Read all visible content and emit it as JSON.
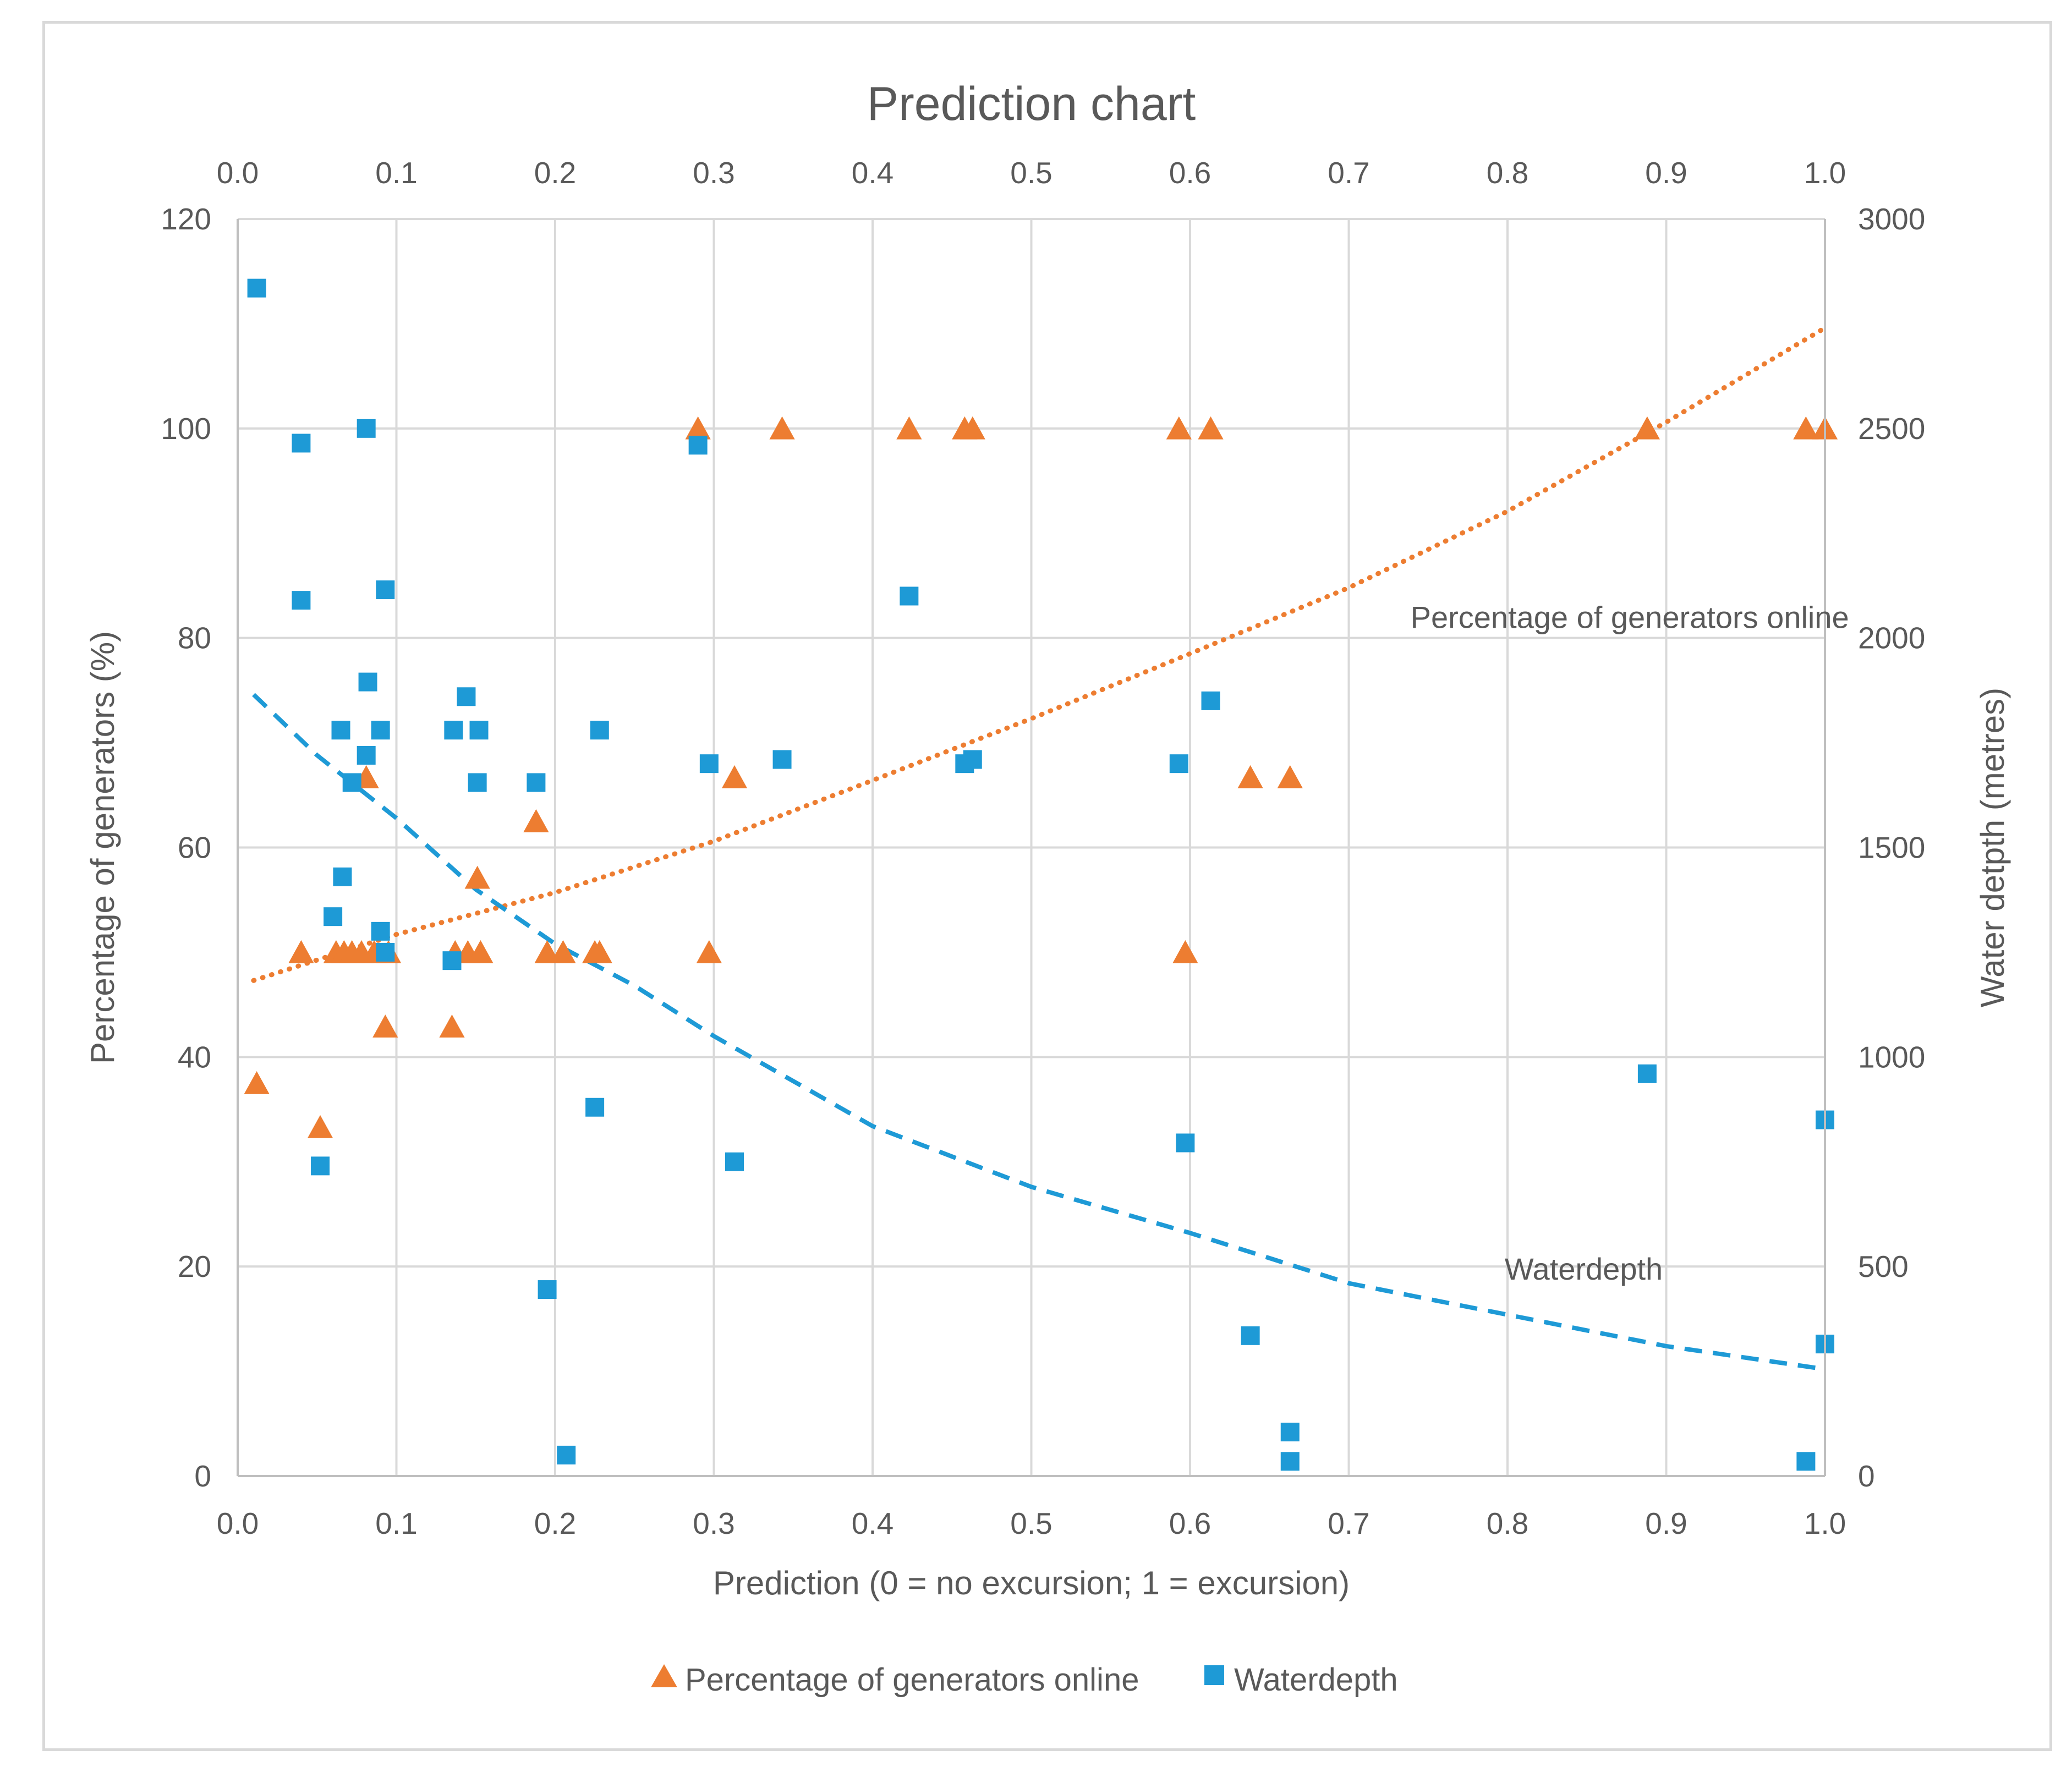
{
  "chart_data": {
    "type": "scatter",
    "title": "Prediction chart",
    "xlabel": "Prediction (0 = no excursion; 1 = excursion)",
    "ylabel": "Percentage of generators (%)",
    "y2label": "Water detpth (metres)",
    "xlim": [
      0,
      1
    ],
    "ylim": [
      0,
      120
    ],
    "y2lim": [
      0,
      3000
    ],
    "x_ticks": [
      0.0,
      0.1,
      0.2,
      0.3,
      0.4,
      0.5,
      0.6,
      0.7,
      0.8,
      0.9,
      1.0
    ],
    "x_tick_labels": [
      "0.0",
      "0.1",
      "0.2",
      "0.3",
      "0.4",
      "0.5",
      "0.6",
      "0.7",
      "0.8",
      "0.9",
      "1.0"
    ],
    "y_ticks": [
      0,
      20,
      40,
      60,
      80,
      100,
      120
    ],
    "y_tick_labels": [
      "0",
      "20",
      "40",
      "60",
      "80",
      "100",
      "120"
    ],
    "y2_ticks": [
      0,
      500,
      1000,
      1500,
      2000,
      2500,
      3000
    ],
    "y2_tick_labels": [
      "0",
      "500",
      "1000",
      "1500",
      "2000",
      "2500",
      "3000"
    ],
    "grid": true,
    "legend_position": "bottom",
    "series": [
      {
        "name": "Percentage of generators online",
        "axis": "left",
        "marker": "triangle",
        "color": "#ED7D31",
        "points": [
          [
            0.012,
            37.5
          ],
          [
            0.04,
            50
          ],
          [
            0.052,
            33.3
          ],
          [
            0.062,
            50
          ],
          [
            0.067,
            50
          ],
          [
            0.072,
            50
          ],
          [
            0.078,
            50
          ],
          [
            0.081,
            66.7
          ],
          [
            0.086,
            50
          ],
          [
            0.093,
            42.9
          ],
          [
            0.095,
            50
          ],
          [
            0.135,
            42.9
          ],
          [
            0.137,
            50
          ],
          [
            0.145,
            50
          ],
          [
            0.151,
            57.1
          ],
          [
            0.153,
            50
          ],
          [
            0.188,
            62.5
          ],
          [
            0.195,
            50
          ],
          [
            0.205,
            50
          ],
          [
            0.225,
            50
          ],
          [
            0.228,
            50
          ],
          [
            0.29,
            100
          ],
          [
            0.297,
            50
          ],
          [
            0.313,
            66.7
          ],
          [
            0.343,
            100
          ],
          [
            0.423,
            100
          ],
          [
            0.458,
            100
          ],
          [
            0.463,
            100
          ],
          [
            0.593,
            100
          ],
          [
            0.597,
            50
          ],
          [
            0.613,
            100
          ],
          [
            0.638,
            66.7
          ],
          [
            0.663,
            66.7
          ],
          [
            0.888,
            100
          ],
          [
            0.988,
            100
          ],
          [
            1.0,
            100
          ]
        ]
      },
      {
        "name": "Waterdepth",
        "axis": "right",
        "marker": "square",
        "color": "#1E9AD6",
        "points": [
          [
            0.012,
            2835
          ],
          [
            0.04,
            2465
          ],
          [
            0.04,
            2090
          ],
          [
            0.052,
            740
          ],
          [
            0.06,
            1335
          ],
          [
            0.065,
            1780
          ],
          [
            0.066,
            1430
          ],
          [
            0.072,
            1655
          ],
          [
            0.081,
            2500
          ],
          [
            0.081,
            1720
          ],
          [
            0.082,
            1895
          ],
          [
            0.09,
            1780
          ],
          [
            0.09,
            1300
          ],
          [
            0.093,
            1250
          ],
          [
            0.093,
            2115
          ],
          [
            0.135,
            1230
          ],
          [
            0.136,
            1780
          ],
          [
            0.144,
            1860
          ],
          [
            0.151,
            1655
          ],
          [
            0.152,
            1780
          ],
          [
            0.188,
            1655
          ],
          [
            0.195,
            445
          ],
          [
            0.207,
            50
          ],
          [
            0.225,
            880
          ],
          [
            0.228,
            1780
          ],
          [
            0.29,
            2460
          ],
          [
            0.297,
            1700
          ],
          [
            0.313,
            750
          ],
          [
            0.343,
            1710
          ],
          [
            0.423,
            2100
          ],
          [
            0.458,
            1700
          ],
          [
            0.463,
            1710
          ],
          [
            0.593,
            1700
          ],
          [
            0.597,
            795
          ],
          [
            0.613,
            1850
          ],
          [
            0.638,
            335
          ],
          [
            0.663,
            105
          ],
          [
            0.663,
            35
          ],
          [
            0.888,
            960
          ],
          [
            0.988,
            35
          ],
          [
            1.0,
            850
          ],
          [
            1.0,
            315
          ]
        ]
      }
    ],
    "trendlines": [
      {
        "name": "Percentage of generators online",
        "label": "Percentage of generators online",
        "axis": "left",
        "style": "dotted",
        "color": "#ED7D31",
        "x": [
          0.01,
          0.1,
          0.2,
          0.3,
          0.4,
          0.5,
          0.6,
          0.7,
          0.8,
          0.9,
          1.0
        ],
        "y": [
          47.3,
          51.7,
          55.7,
          60.6,
          66.4,
          72.3,
          78.5,
          84.8,
          92.1,
          100.6,
          109.6
        ]
      },
      {
        "name": "Waterdepth",
        "label": "Waterdepth",
        "axis": "right",
        "style": "dashed",
        "color": "#1E9AD6",
        "x": [
          0.01,
          0.05,
          0.1,
          0.15,
          0.2,
          0.25,
          0.3,
          0.4,
          0.5,
          0.6,
          0.7,
          0.8,
          0.9,
          1.0
        ],
        "y": [
          1865,
          1720,
          1570,
          1400,
          1270,
          1170,
          1050,
          835,
          690,
          580,
          460,
          385,
          310,
          255
        ]
      }
    ]
  }
}
